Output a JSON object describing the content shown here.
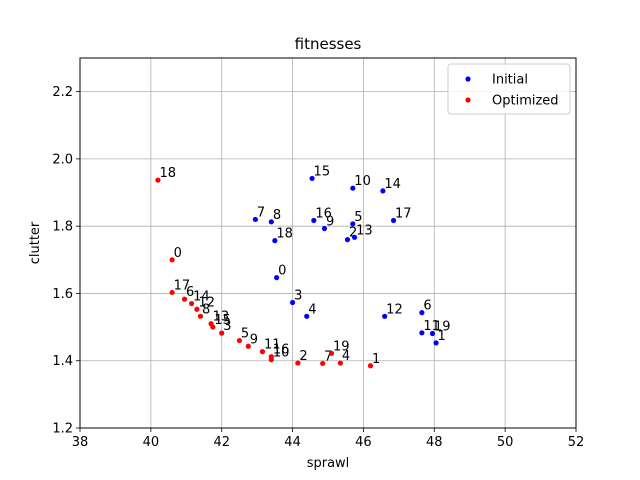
{
  "chart_data": {
    "type": "scatter",
    "title": "fitnesses",
    "xlabel": "sprawl",
    "ylabel": "clutter",
    "xlim": [
      38,
      52
    ],
    "ylim": [
      1.2,
      2.3
    ],
    "xticks": [
      38,
      40,
      42,
      44,
      46,
      48,
      50,
      52
    ],
    "yticks": [
      1.2,
      1.4,
      1.6,
      1.8,
      2.0,
      2.2
    ],
    "xtick_labels": [
      "38",
      "40",
      "42",
      "44",
      "46",
      "48",
      "50",
      "52"
    ],
    "ytick_labels": [
      "1.2",
      "1.4",
      "1.6",
      "1.8",
      "2.0",
      "2.2"
    ],
    "grid": true,
    "legend_position": "top-right",
    "series": [
      {
        "name": "Initial",
        "color": "#0000ff",
        "points": [
          {
            "label": "0",
            "x": 43.55,
            "y": 1.647
          },
          {
            "label": "1",
            "x": 48.05,
            "y": 1.453
          },
          {
            "label": "2",
            "x": 45.55,
            "y": 1.76
          },
          {
            "label": "3",
            "x": 44.0,
            "y": 1.573
          },
          {
            "label": "4",
            "x": 44.4,
            "y": 1.532
          },
          {
            "label": "5",
            "x": 45.7,
            "y": 1.807
          },
          {
            "label": "6",
            "x": 47.65,
            "y": 1.543
          },
          {
            "label": "7",
            "x": 42.95,
            "y": 1.82
          },
          {
            "label": "8",
            "x": 43.4,
            "y": 1.813
          },
          {
            "label": "9",
            "x": 44.9,
            "y": 1.793
          },
          {
            "label": "10",
            "x": 45.7,
            "y": 1.913
          },
          {
            "label": "11",
            "x": 47.65,
            "y": 1.483
          },
          {
            "label": "12",
            "x": 46.6,
            "y": 1.532
          },
          {
            "label": "13",
            "x": 45.75,
            "y": 1.767
          },
          {
            "label": "14",
            "x": 46.55,
            "y": 1.905
          },
          {
            "label": "15",
            "x": 44.55,
            "y": 1.942
          },
          {
            "label": "16",
            "x": 44.6,
            "y": 1.817
          },
          {
            "label": "17",
            "x": 46.85,
            "y": 1.817
          },
          {
            "label": "18",
            "x": 43.5,
            "y": 1.757
          },
          {
            "label": "19",
            "x": 47.95,
            "y": 1.481
          }
        ]
      },
      {
        "name": "Optimized",
        "color": "#ff0000",
        "points": [
          {
            "label": "0",
            "x": 40.6,
            "y": 1.7
          },
          {
            "label": "1",
            "x": 46.2,
            "y": 1.385
          },
          {
            "label": "2",
            "x": 44.15,
            "y": 1.393
          },
          {
            "label": "3",
            "x": 42.0,
            "y": 1.482
          },
          {
            "label": "4",
            "x": 45.35,
            "y": 1.393
          },
          {
            "label": "5",
            "x": 42.5,
            "y": 1.46
          },
          {
            "label": "6",
            "x": 40.95,
            "y": 1.583
          },
          {
            "label": "7",
            "x": 44.85,
            "y": 1.392
          },
          {
            "label": "8",
            "x": 41.4,
            "y": 1.532
          },
          {
            "label": "9",
            "x": 42.75,
            "y": 1.443
          },
          {
            "label": "10",
            "x": 43.4,
            "y": 1.403
          },
          {
            "label": "11",
            "x": 43.15,
            "y": 1.427
          },
          {
            "label": "12",
            "x": 41.3,
            "y": 1.553
          },
          {
            "label": "13",
            "x": 41.7,
            "y": 1.51
          },
          {
            "label": "14",
            "x": 41.15,
            "y": 1.57
          },
          {
            "label": "15",
            "x": 41.75,
            "y": 1.5
          },
          {
            "label": "16",
            "x": 43.4,
            "y": 1.412
          },
          {
            "label": "17",
            "x": 40.6,
            "y": 1.603
          },
          {
            "label": "18",
            "x": 40.2,
            "y": 1.937
          },
          {
            "label": "19",
            "x": 45.1,
            "y": 1.422
          }
        ]
      }
    ]
  }
}
